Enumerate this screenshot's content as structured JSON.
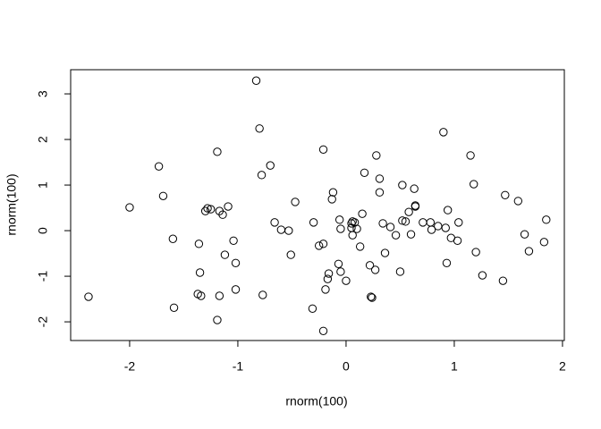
{
  "chart_data": {
    "type": "scatter",
    "xlabel": "rnorm(100)",
    "ylabel": "rnorm(100)",
    "x": [
      -2.38,
      -2.0,
      -1.73,
      -1.69,
      -1.6,
      -1.59,
      -1.36,
      -1.35,
      -1.37,
      -1.34,
      -1.3,
      -1.28,
      -1.25,
      -1.19,
      -1.19,
      -1.17,
      -1.17,
      -1.14,
      -1.12,
      -1.09,
      -1.04,
      -1.02,
      -1.02,
      -0.83,
      -0.8,
      -0.78,
      -0.77,
      -0.7,
      -0.66,
      -0.6,
      -0.53,
      -0.51,
      -0.47,
      -0.31,
      -0.3,
      -0.25,
      -0.21,
      -0.21,
      -0.21,
      -0.19,
      -0.17,
      -0.16,
      -0.13,
      -0.12,
      -0.07,
      -0.06,
      -0.05,
      -0.05,
      0.0,
      0.05,
      0.05,
      0.06,
      0.06,
      0.08,
      0.1,
      0.13,
      0.15,
      0.17,
      0.22,
      0.23,
      0.24,
      0.28,
      0.27,
      0.31,
      0.31,
      0.34,
      0.36,
      0.41,
      0.46,
      0.5,
      0.52,
      0.52,
      0.55,
      0.58,
      0.6,
      0.63,
      0.64,
      0.64,
      0.71,
      0.78,
      0.79,
      0.85,
      0.9,
      0.92,
      0.93,
      0.94,
      0.97,
      1.03,
      1.04,
      1.15,
      1.18,
      1.2,
      1.26,
      1.45,
      1.47,
      1.59,
      1.65,
      1.69,
      1.83,
      1.85
    ],
    "y": [
      -1.45,
      0.51,
      1.41,
      0.76,
      -0.18,
      -1.69,
      -0.29,
      -0.92,
      -1.39,
      -1.43,
      0.43,
      0.49,
      0.47,
      1.73,
      -1.96,
      -1.43,
      0.43,
      0.35,
      -0.53,
      0.53,
      -0.22,
      -0.71,
      -1.29,
      3.29,
      2.24,
      1.22,
      -1.41,
      1.43,
      0.18,
      0.02,
      0.0,
      -0.53,
      0.63,
      -1.71,
      0.18,
      -0.33,
      -0.29,
      1.78,
      -2.2,
      -1.29,
      -1.06,
      -0.94,
      0.69,
      0.84,
      -0.73,
      0.24,
      0.04,
      -0.9,
      -1.1,
      0.16,
      0.06,
      0.2,
      -0.1,
      0.18,
      0.04,
      -0.35,
      0.37,
      1.27,
      -0.76,
      -1.45,
      -1.47,
      1.65,
      -0.86,
      0.84,
      1.14,
      0.16,
      -0.49,
      0.08,
      -0.1,
      -0.9,
      0.22,
      1.0,
      0.2,
      0.41,
      -0.08,
      0.92,
      0.53,
      0.55,
      0.18,
      0.18,
      0.02,
      0.1,
      2.16,
      0.06,
      -0.71,
      0.45,
      -0.16,
      -0.22,
      0.18,
      1.65,
      1.02,
      -0.47,
      -0.98,
      -1.1,
      0.78,
      0.65,
      -0.08,
      -0.45,
      -0.25,
      0.24
    ],
    "color": "#000000",
    "xlim": [
      -2.545,
      2.017
    ],
    "ylim": [
      -2.41,
      3.53
    ],
    "xticks": [
      -2,
      -1,
      0,
      1,
      2
    ],
    "yticks": [
      -2,
      -1,
      0,
      1,
      2,
      3
    ]
  }
}
